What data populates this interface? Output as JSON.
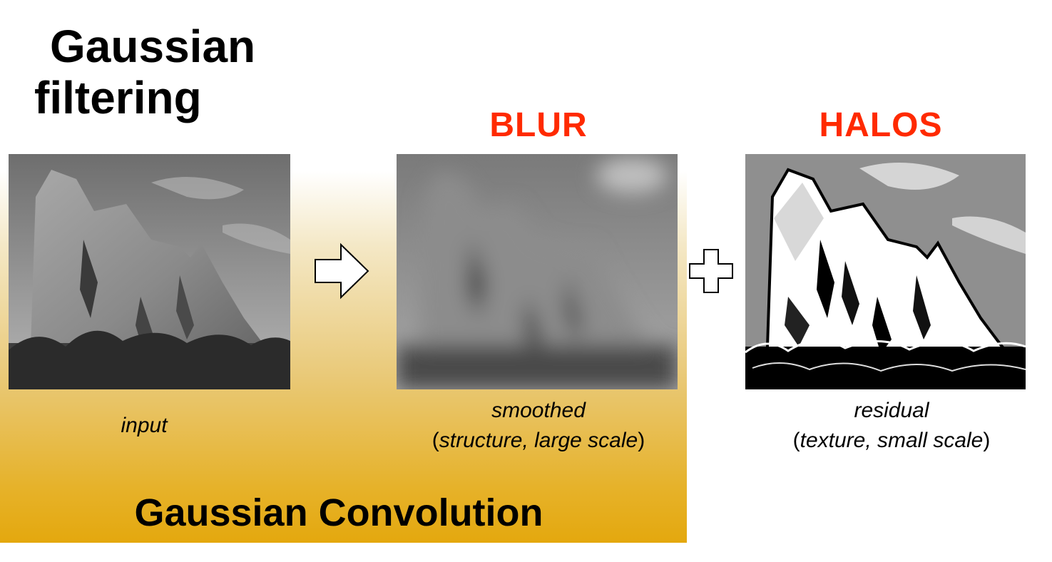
{
  "title": {
    "line1": "Gaussian",
    "line2": "filtering"
  },
  "labels": {
    "blur": "BLUR",
    "halos": "HALOS"
  },
  "captions": {
    "input": "input",
    "smoothed": "smoothed",
    "smoothed_detail": "structure, large scale",
    "residual": "residual",
    "residual_detail": "texture, small scale"
  },
  "footer": {
    "label": "Gaussian Convolution"
  },
  "colors": {
    "accent_red": "#ff2a00",
    "gradient_bottom": "#e4a80e"
  },
  "icons": {
    "arrow": "right-arrow-outline-icon",
    "plus": "plus-outline-icon"
  }
}
